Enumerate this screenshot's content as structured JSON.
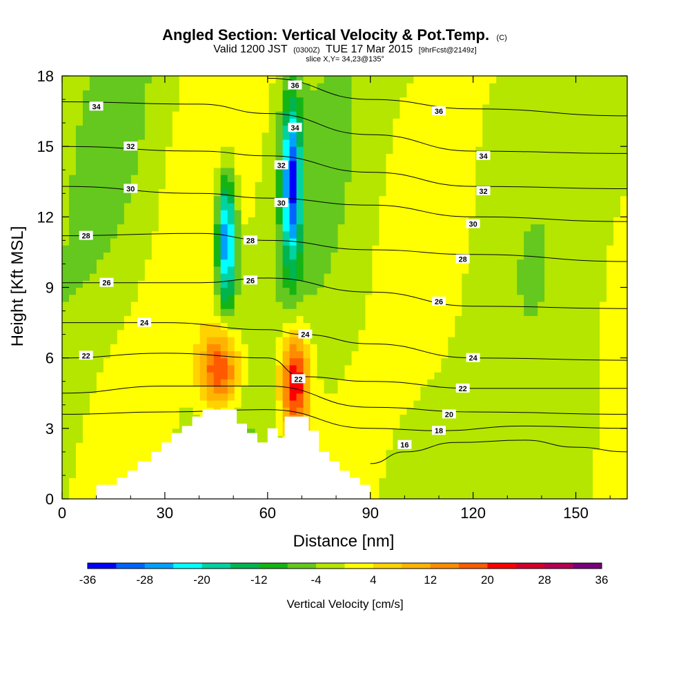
{
  "title": {
    "main": "Angled Section: Vertical Velocity & Pot.Temp.",
    "main_suffix": "(C)",
    "valid_prefix": "Valid 1200 JST",
    "valid_z": "(0300Z)",
    "valid_date": "TUE 17 Mar 2015",
    "valid_fcst": "[9hrFcst@2149z]",
    "slice": "slice X,Y= 34,23@135°"
  },
  "chart_data": {
    "type": "heatmap",
    "xlabel": "Distance [nm]",
    "ylabel": "Height [Kft MSL]",
    "xlim": [
      0,
      165
    ],
    "ylim": [
      0,
      18
    ],
    "x_ticks": [
      0,
      30,
      60,
      90,
      120,
      150
    ],
    "y_ticks": [
      0,
      3,
      6,
      9,
      12,
      15,
      18
    ],
    "colorbar": {
      "title": "Vertical Velocity [cm/s]",
      "ticks": [
        -36,
        -28,
        -20,
        -12,
        -4,
        4,
        12,
        20,
        28,
        36
      ],
      "levels": [
        -36,
        -32,
        -28,
        -24,
        -20,
        -16,
        -12,
        -8,
        -4,
        0,
        4,
        8,
        12,
        16,
        20,
        24,
        28,
        32,
        36
      ],
      "colors": [
        "#0000ff",
        "#0064ff",
        "#00a0ff",
        "#00ffff",
        "#00d2a0",
        "#00b450",
        "#14b414",
        "#64c81e",
        "#b4e600",
        "#ffff00",
        "#ffd200",
        "#ffb400",
        "#ff8c00",
        "#ff5a00",
        "#ff0000",
        "#d20028",
        "#b40050",
        "#780078"
      ]
    },
    "terrain": [
      [
        0,
        0
      ],
      [
        10,
        0
      ],
      [
        10,
        0.6
      ],
      [
        16,
        0.6
      ],
      [
        16,
        0.9
      ],
      [
        19,
        0.9
      ],
      [
        19,
        1.2
      ],
      [
        22,
        1.2
      ],
      [
        22,
        1.6
      ],
      [
        26,
        1.6
      ],
      [
        26,
        2.0
      ],
      [
        29,
        2.0
      ],
      [
        29,
        2.4
      ],
      [
        32,
        2.4
      ],
      [
        32,
        2.8
      ],
      [
        35,
        2.8
      ],
      [
        35,
        3.1
      ],
      [
        38,
        3.1
      ],
      [
        38,
        3.5
      ],
      [
        41,
        3.5
      ],
      [
        41,
        3.8
      ],
      [
        51,
        3.8
      ],
      [
        51,
        3.2
      ],
      [
        54,
        3.2
      ],
      [
        54,
        2.8
      ],
      [
        57,
        2.8
      ],
      [
        57,
        2.4
      ],
      [
        60,
        2.4
      ],
      [
        60,
        3.0
      ],
      [
        63,
        3.0
      ],
      [
        63,
        2.6
      ],
      [
        65,
        2.6
      ],
      [
        65,
        3.5
      ],
      [
        72,
        3.5
      ],
      [
        72,
        2.9
      ],
      [
        75,
        2.9
      ],
      [
        75,
        2.0
      ],
      [
        78,
        2.0
      ],
      [
        78,
        1.6
      ],
      [
        81,
        1.6
      ],
      [
        81,
        1.2
      ],
      [
        84,
        1.2
      ],
      [
        84,
        0.9
      ],
      [
        87,
        0.9
      ],
      [
        87,
        0.6
      ],
      [
        90,
        0.6
      ],
      [
        90,
        0
      ],
      [
        165,
        0
      ]
    ],
    "wind_blobs": [
      {
        "x": 48,
        "y": 11,
        "sx": 2.0,
        "sy": 2.0,
        "v": -30
      },
      {
        "x": 67,
        "y": 13.5,
        "sx": 2.0,
        "sy": 2.5,
        "v": -30
      },
      {
        "x": 46,
        "y": 5.5,
        "sx": 4.0,
        "sy": 1.2,
        "v": 22
      },
      {
        "x": 68,
        "y": 5.0,
        "sx": 3.0,
        "sy": 1.5,
        "v": 26
      }
    ],
    "contours": [
      {
        "value": 16,
        "label": "16",
        "pts": [
          [
            90,
            1.5
          ],
          [
            100,
            2.0
          ],
          [
            115,
            2.4
          ],
          [
            135,
            2.5
          ],
          [
            150,
            2.2
          ],
          [
            165,
            2.0
          ]
        ]
      },
      {
        "value": 18,
        "label": "18",
        "pts": [
          [
            0,
            3.6
          ],
          [
            30,
            3.7
          ],
          [
            60,
            3.8
          ],
          [
            90,
            3.0
          ],
          [
            110,
            2.9
          ],
          [
            135,
            3.1
          ],
          [
            165,
            3.0
          ]
        ]
      },
      {
        "value": 20,
        "label": "20",
        "pts": [
          [
            0,
            4.5
          ],
          [
            30,
            4.8
          ],
          [
            60,
            4.8
          ],
          [
            90,
            3.9
          ],
          [
            120,
            3.7
          ],
          [
            165,
            3.6
          ]
        ]
      },
      {
        "value": 22,
        "label": "22",
        "pts": [
          [
            0,
            6.0
          ],
          [
            30,
            6.2
          ],
          [
            60,
            6.0
          ],
          [
            70,
            5.2
          ],
          [
            90,
            5.0
          ],
          [
            120,
            4.7
          ],
          [
            165,
            4.7
          ]
        ]
      },
      {
        "value": 24,
        "label": "24",
        "pts": [
          [
            0,
            7.5
          ],
          [
            30,
            7.5
          ],
          [
            60,
            7.2
          ],
          [
            70,
            7.0
          ],
          [
            90,
            6.6
          ],
          [
            120,
            6.0
          ],
          [
            165,
            5.9
          ]
        ]
      },
      {
        "value": 26,
        "label": "26",
        "pts": [
          [
            0,
            9.2
          ],
          [
            40,
            9.2
          ],
          [
            60,
            9.4
          ],
          [
            90,
            8.8
          ],
          [
            120,
            8.2
          ],
          [
            165,
            8.1
          ]
        ]
      },
      {
        "value": 28,
        "label": "28",
        "pts": [
          [
            0,
            11.2
          ],
          [
            40,
            11.3
          ],
          [
            60,
            11.0
          ],
          [
            90,
            10.6
          ],
          [
            120,
            10.4
          ],
          [
            165,
            10.1
          ]
        ]
      },
      {
        "value": 30,
        "label": "30",
        "pts": [
          [
            0,
            13.3
          ],
          [
            40,
            13.0
          ],
          [
            60,
            12.8
          ],
          [
            90,
            12.5
          ],
          [
            120,
            12.0
          ],
          [
            165,
            11.8
          ]
        ]
      },
      {
        "value": 32,
        "label": "32",
        "pts": [
          [
            0,
            15.0
          ],
          [
            40,
            14.8
          ],
          [
            60,
            14.6
          ],
          [
            90,
            13.9
          ],
          [
            120,
            13.3
          ],
          [
            165,
            13.2
          ]
        ]
      },
      {
        "value": 34,
        "label": "34",
        "pts": [
          [
            0,
            16.9
          ],
          [
            40,
            16.8
          ],
          [
            60,
            16.4
          ],
          [
            90,
            15.5
          ],
          [
            120,
            14.8
          ],
          [
            165,
            14.7
          ]
        ]
      },
      {
        "value": 36,
        "label": "36",
        "pts": [
          [
            60,
            17.9
          ],
          [
            90,
            17.0
          ],
          [
            120,
            16.6
          ],
          [
            165,
            16.3
          ]
        ]
      }
    ],
    "contour_labels": [
      {
        "x": 10,
        "y": 16.7,
        "text": "34"
      },
      {
        "x": 20,
        "y": 15.0,
        "text": "32"
      },
      {
        "x": 20,
        "y": 13.2,
        "text": "30"
      },
      {
        "x": 7,
        "y": 11.2,
        "text": "28"
      },
      {
        "x": 13,
        "y": 9.2,
        "text": "26"
      },
      {
        "x": 24,
        "y": 7.5,
        "text": "24"
      },
      {
        "x": 7,
        "y": 6.1,
        "text": "22"
      },
      {
        "x": 68,
        "y": 17.6,
        "text": "36"
      },
      {
        "x": 68,
        "y": 15.8,
        "text": "34"
      },
      {
        "x": 64,
        "y": 14.2,
        "text": "32"
      },
      {
        "x": 64,
        "y": 12.6,
        "text": "30"
      },
      {
        "x": 55,
        "y": 11.0,
        "text": "28"
      },
      {
        "x": 55,
        "y": 9.3,
        "text": "26"
      },
      {
        "x": 71,
        "y": 7.0,
        "text": "24"
      },
      {
        "x": 69,
        "y": 5.1,
        "text": "22"
      },
      {
        "x": 110,
        "y": 16.5,
        "text": "36"
      },
      {
        "x": 123,
        "y": 14.6,
        "text": "34"
      },
      {
        "x": 123,
        "y": 13.1,
        "text": "32"
      },
      {
        "x": 120,
        "y": 11.7,
        "text": "30"
      },
      {
        "x": 117,
        "y": 10.2,
        "text": "28"
      },
      {
        "x": 110,
        "y": 8.4,
        "text": "26"
      },
      {
        "x": 120,
        "y": 6.0,
        "text": "24"
      },
      {
        "x": 117,
        "y": 4.7,
        "text": "22"
      },
      {
        "x": 113,
        "y": 3.6,
        "text": "20"
      },
      {
        "x": 110,
        "y": 2.9,
        "text": "18"
      },
      {
        "x": 100,
        "y": 2.3,
        "text": "16"
      }
    ]
  }
}
